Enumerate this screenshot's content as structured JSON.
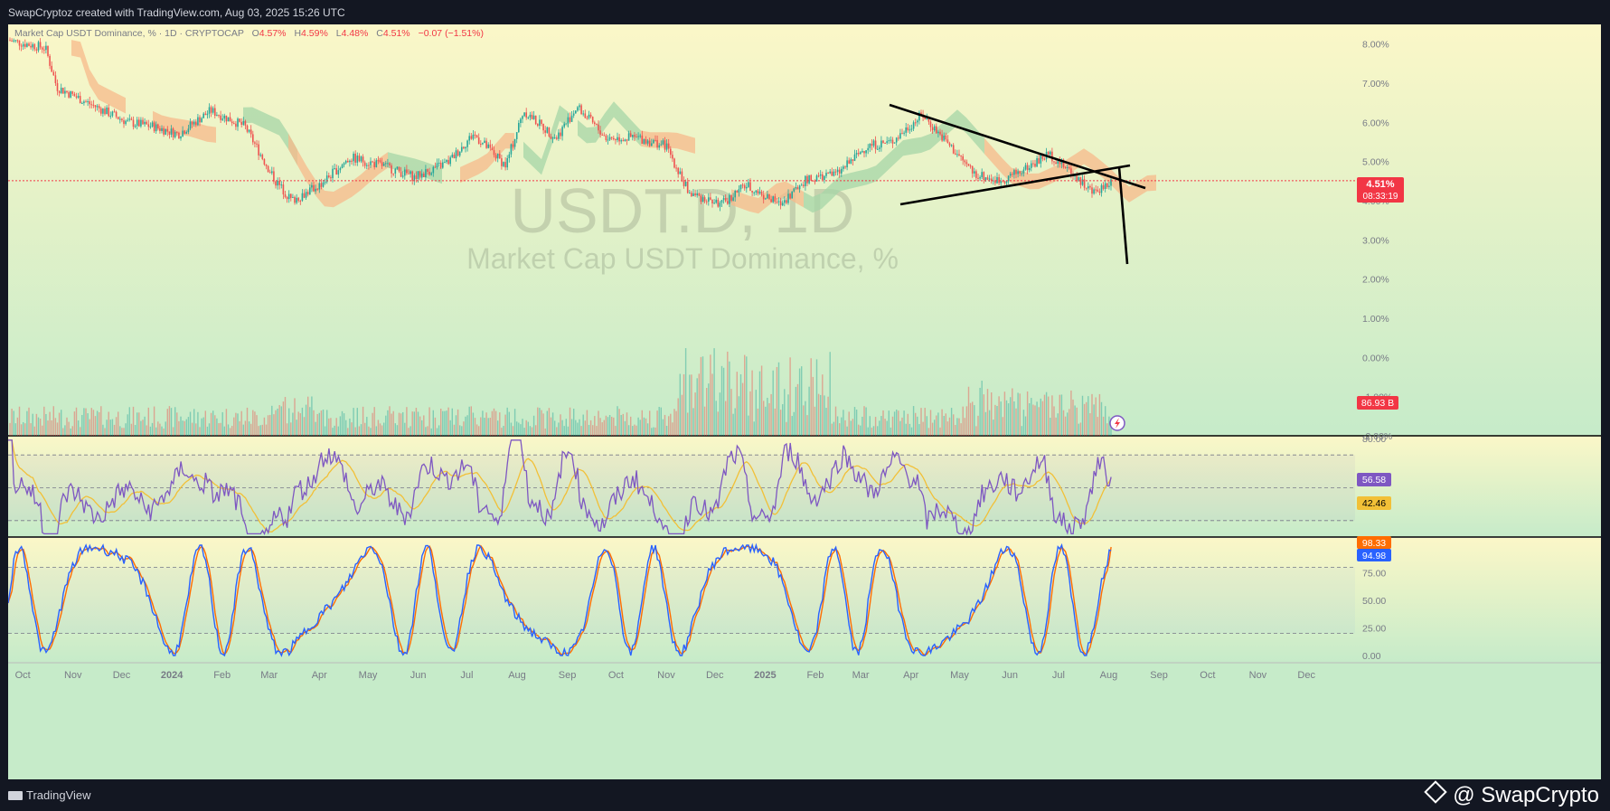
{
  "header": {
    "text": "SwapCryptoz created with TradingView.com, Aug 03, 2025 15:26 UTC"
  },
  "legend": {
    "symbol": "Market Cap USDT Dominance, % · 1D · CRYPTOCAP",
    "open_label": "O",
    "open": "4.57%",
    "high_label": "H",
    "high": "4.59%",
    "low_label": "L",
    "low": "4.48%",
    "close_label": "C",
    "close": "4.51%",
    "change": "−0.07 (−1.51%)"
  },
  "watermark": {
    "ticker": "USDT.D, 1D",
    "name": "Market Cap USDT Dominance, %"
  },
  "footer": {
    "brand": "TradingView",
    "credit": "@ SwapCrypto"
  },
  "colors": {
    "up": "#26a69a",
    "down": "#ef5350",
    "rsi": "#7e57c2",
    "rsi_ma": "#f2c037",
    "stoch_k": "#2962ff",
    "stoch_d": "#ff6d00",
    "cloud_bull": "#a5d6a7",
    "cloud_bear": "#f7b98b",
    "price_label_bg": "#f23645",
    "volume_label_bg": "#f23645",
    "rsi_label_bg": "#7e57c2",
    "rsi_ma_label_bg": "#f2c037",
    "stoch_d_label_bg": "#ff6d00",
    "stoch_k_label_bg": "#2962ff"
  },
  "price_labels": {
    "last": "4.51%",
    "countdown": "08:33:19",
    "volume": "86.93 B",
    "rsi": "56.58",
    "rsi_ma": "42.46",
    "stoch_d": "98.33",
    "stoch_k": "94.98"
  },
  "chart_data": [
    {
      "type": "candlestick",
      "title": "Market Cap USDT Dominance, %",
      "interval": "1D",
      "ylim": [
        -2,
        8.5
      ],
      "y_axis_unit": "%",
      "y_ticks": [
        "8.00%",
        "7.00%",
        "6.00%",
        "5.00%",
        "4.00%",
        "3.00%",
        "2.00%",
        "1.00%",
        "0.00%",
        "-1.00%",
        "-2.00%"
      ],
      "x_ticks": [
        "Oct",
        "Nov",
        "Dec",
        "2024",
        "Feb",
        "Mar",
        "Apr",
        "May",
        "Jun",
        "Jul",
        "Aug",
        "Sep",
        "Oct",
        "Nov",
        "Dec",
        "2025",
        "Feb",
        "Mar",
        "Apr",
        "May",
        "Jun",
        "Jul",
        "Aug",
        "Sep",
        "Oct",
        "Nov",
        "Dec"
      ],
      "x_range": [
        "2023-09-22",
        "2025-12-31"
      ],
      "price_path": [
        [
          "2023-09-22",
          8.1
        ],
        [
          "2023-10-15",
          7.9
        ],
        [
          "2023-10-22",
          6.9
        ],
        [
          "2023-11-10",
          6.5
        ],
        [
          "2023-12-05",
          6.0
        ],
        [
          "2023-12-20",
          5.9
        ],
        [
          "2024-01-05",
          5.7
        ],
        [
          "2024-01-25",
          6.3
        ],
        [
          "2024-02-15",
          5.9
        ],
        [
          "2024-03-05",
          4.5
        ],
        [
          "2024-03-15",
          4.0
        ],
        [
          "2024-04-01",
          4.4
        ],
        [
          "2024-04-20",
          5.1
        ],
        [
          "2024-05-10",
          4.9
        ],
        [
          "2024-05-30",
          4.6
        ],
        [
          "2024-06-20",
          5.0
        ],
        [
          "2024-07-05",
          5.7
        ],
        [
          "2024-07-25",
          4.9
        ],
        [
          "2024-08-05",
          6.3
        ],
        [
          "2024-08-25",
          5.6
        ],
        [
          "2024-09-07",
          6.4
        ],
        [
          "2024-09-25",
          5.6
        ],
        [
          "2024-10-15",
          5.6
        ],
        [
          "2024-11-01",
          5.4
        ],
        [
          "2024-11-15",
          4.2
        ],
        [
          "2024-12-05",
          3.9
        ],
        [
          "2024-12-20",
          4.4
        ],
        [
          "2025-01-10",
          3.9
        ],
        [
          "2025-01-25",
          4.5
        ],
        [
          "2025-02-15",
          4.7
        ],
        [
          "2025-03-05",
          5.4
        ],
        [
          "2025-03-20",
          5.5
        ],
        [
          "2025-04-08",
          6.2
        ],
        [
          "2025-04-25",
          5.4
        ],
        [
          "2025-05-10",
          4.7
        ],
        [
          "2025-05-25",
          4.5
        ],
        [
          "2025-06-10",
          4.8
        ],
        [
          "2025-06-25",
          5.2
        ],
        [
          "2025-07-10",
          4.7
        ],
        [
          "2025-07-22",
          4.2
        ],
        [
          "2025-08-03",
          4.51
        ]
      ],
      "current_price": 4.51
    },
    {
      "type": "bar",
      "title": "Volume",
      "last_value": "86.93 B",
      "note": "volume bars overlaid at bottom of price pane; higher activity Nov 2024 – Mar 2025"
    },
    {
      "type": "line",
      "title": "RSI",
      "ylim": [
        20,
        80
      ],
      "y_ticks": [
        "80.00"
      ],
      "levels": [
        70,
        50,
        30
      ],
      "series": [
        {
          "name": "RSI",
          "last": 56.58
        },
        {
          "name": "RSI MA",
          "last": 42.46
        }
      ]
    },
    {
      "type": "line",
      "title": "Stochastic",
      "ylim": [
        0,
        100
      ],
      "y_ticks": [
        "75.00",
        "50.00",
        "25.00",
        "0.00"
      ],
      "levels": [
        80,
        20
      ],
      "series": [
        {
          "name": "%K",
          "last": 94.98
        },
        {
          "name": "%D",
          "last": 98.33
        }
      ]
    }
  ]
}
